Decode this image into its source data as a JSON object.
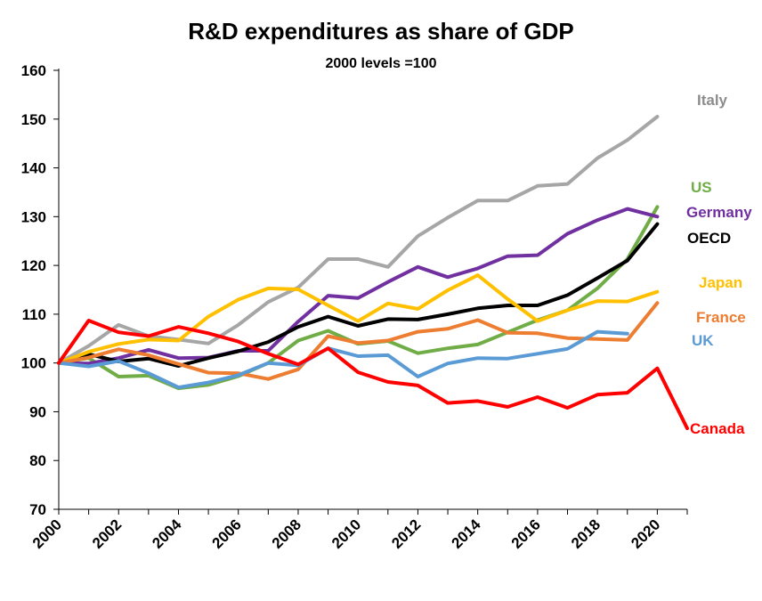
{
  "chart_data": {
    "type": "line",
    "title": "R&D expenditures as share of GDP",
    "subtitle": "2000 levels =100",
    "xlabel": "",
    "ylabel": "",
    "ylim": [
      70,
      160
    ],
    "y_ticks": [
      70,
      80,
      90,
      100,
      110,
      120,
      130,
      140,
      150,
      160
    ],
    "xlim": [
      2000,
      2021
    ],
    "x_ticks": [
      "2000",
      "2002",
      "2004",
      "2006",
      "2008",
      "2010",
      "2012",
      "2014",
      "2016",
      "2018",
      "2020"
    ],
    "grid": false,
    "legend": "inline labels at right end of lines",
    "series": [
      {
        "name": "Italy",
        "color": "#a6a6a6",
        "x": [
          2000,
          2001,
          2002,
          2003,
          2004,
          2005,
          2006,
          2007,
          2008,
          2009,
          2010,
          2011,
          2012,
          2013,
          2014,
          2015,
          2016,
          2017,
          2018,
          2019,
          2020
        ],
        "values": [
          100,
          103.5,
          107.8,
          105.5,
          104.8,
          104.0,
          107.8,
          112.5,
          115.5,
          121.3,
          121.3,
          119.7,
          126.0,
          129.8,
          133.3,
          133.3,
          136.3,
          136.7,
          142.0,
          145.7,
          150.5
        ]
      },
      {
        "name": "US",
        "color": "#70ad47",
        "x": [
          2000,
          2001,
          2002,
          2003,
          2004,
          2005,
          2006,
          2007,
          2008,
          2009,
          2010,
          2011,
          2012,
          2013,
          2014,
          2015,
          2016,
          2017,
          2018,
          2019,
          2020
        ],
        "values": [
          100,
          101.0,
          97.2,
          97.4,
          94.8,
          95.5,
          97.3,
          100.0,
          104.6,
          106.6,
          103.9,
          104.5,
          102.0,
          103.0,
          103.8,
          106.3,
          108.8,
          110.8,
          115.3,
          121.3,
          132.0
        ]
      },
      {
        "name": "Germany",
        "color": "#7030a0",
        "x": [
          2000,
          2001,
          2002,
          2003,
          2004,
          2005,
          2006,
          2007,
          2008,
          2009,
          2010,
          2011,
          2012,
          2013,
          2014,
          2015,
          2016,
          2017,
          2018,
          2019,
          2020
        ],
        "values": [
          100,
          99.9,
          101.0,
          102.7,
          101.0,
          101.1,
          102.5,
          102.5,
          108.5,
          113.8,
          113.3,
          116.6,
          119.7,
          117.6,
          119.4,
          121.9,
          122.1,
          126.5,
          129.3,
          131.6,
          130.0
        ]
      },
      {
        "name": "OECD",
        "color": "#000000",
        "x": [
          2000,
          2001,
          2002,
          2003,
          2004,
          2005,
          2006,
          2007,
          2008,
          2009,
          2010,
          2011,
          2012,
          2013,
          2014,
          2015,
          2016,
          2017,
          2018,
          2019,
          2020
        ],
        "values": [
          100,
          101.8,
          100.3,
          100.9,
          99.4,
          101.0,
          102.4,
          104.3,
          107.4,
          109.5,
          107.6,
          109.0,
          108.9,
          110.0,
          111.2,
          111.8,
          111.8,
          113.9,
          117.4,
          121.0,
          128.5
        ]
      },
      {
        "name": "Japan",
        "color": "#ffc000",
        "x": [
          2000,
          2001,
          2002,
          2003,
          2004,
          2005,
          2006,
          2007,
          2008,
          2009,
          2010,
          2011,
          2012,
          2013,
          2014,
          2015,
          2016,
          2017,
          2018,
          2019,
          2020
        ],
        "values": [
          100,
          102.3,
          103.9,
          104.8,
          104.6,
          109.5,
          113.0,
          115.3,
          115.1,
          111.8,
          108.6,
          112.2,
          111.1,
          114.9,
          118.0,
          113.1,
          108.6,
          110.8,
          112.7,
          112.6,
          114.6
        ]
      },
      {
        "name": "France",
        "color": "#ed7d31",
        "x": [
          2000,
          2001,
          2002,
          2003,
          2004,
          2005,
          2006,
          2007,
          2008,
          2009,
          2010,
          2011,
          2012,
          2013,
          2014,
          2015,
          2016,
          2017,
          2018,
          2019,
          2020
        ],
        "values": [
          100,
          101.1,
          102.8,
          101.6,
          99.8,
          98.0,
          97.9,
          96.7,
          98.7,
          105.5,
          104.1,
          104.6,
          106.4,
          107.0,
          108.8,
          106.2,
          106.1,
          105.1,
          104.9,
          104.7,
          112.3
        ]
      },
      {
        "name": "UK",
        "color": "#5b9bd5",
        "x": [
          2000,
          2001,
          2002,
          2003,
          2004,
          2005,
          2006,
          2007,
          2008,
          2009,
          2010,
          2011,
          2012,
          2013,
          2014,
          2015,
          2016,
          2017,
          2018,
          2019
        ],
        "values": [
          100,
          99.3,
          100.4,
          97.9,
          95.0,
          96.0,
          97.5,
          100.0,
          99.5,
          103.0,
          101.4,
          101.6,
          97.2,
          99.9,
          101.0,
          100.9,
          101.9,
          102.9,
          106.4,
          106.0
        ]
      },
      {
        "name": "Canada",
        "color": "#ff0000",
        "x": [
          2000,
          2001,
          2002,
          2003,
          2004,
          2005,
          2006,
          2007,
          2008,
          2009,
          2010,
          2011,
          2012,
          2013,
          2014,
          2015,
          2016,
          2017,
          2018,
          2019,
          2020,
          2021
        ],
        "values": [
          100,
          108.7,
          106.3,
          105.5,
          107.4,
          106.1,
          104.4,
          101.9,
          99.7,
          103.0,
          98.1,
          96.1,
          95.4,
          91.8,
          92.2,
          91.0,
          93.0,
          90.8,
          93.5,
          93.9,
          98.9,
          86.6
        ]
      }
    ]
  }
}
